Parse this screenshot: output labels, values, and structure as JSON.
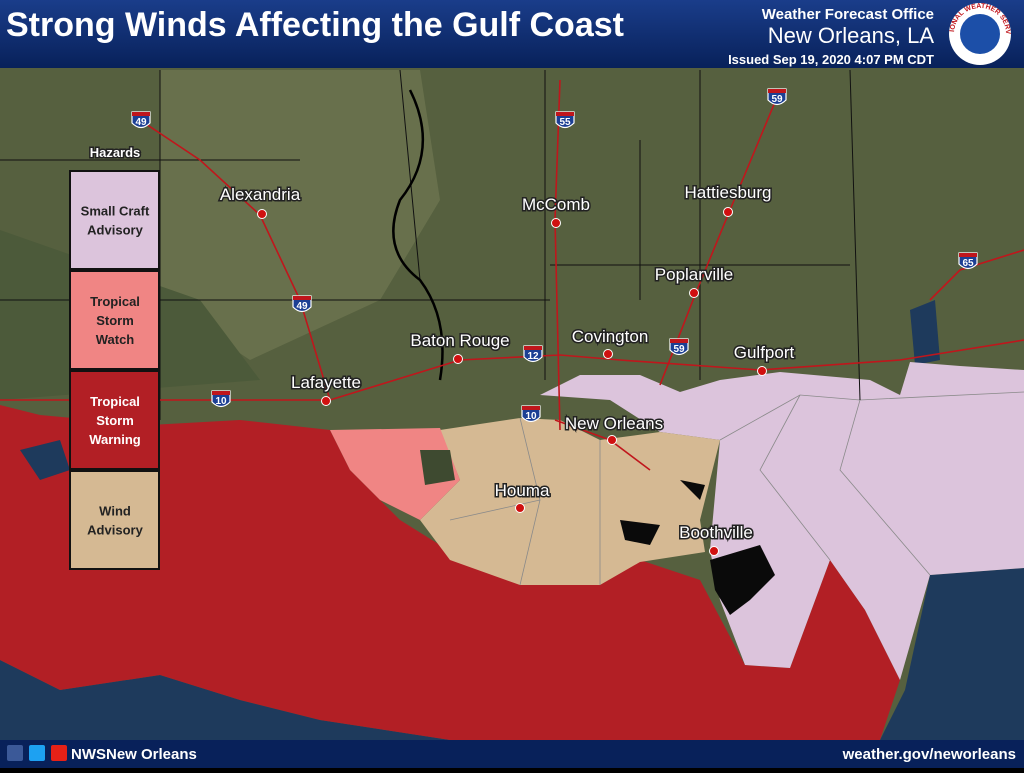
{
  "header": {
    "title": "Strong Winds Affecting the Gulf Coast",
    "office": "Weather Forecast Office",
    "location": "New Orleans, LA",
    "issued": "Issued Sep 19, 2020 4:07 PM CDT",
    "logo_text": "NATIONAL WEATHER SERVICE"
  },
  "legend": {
    "title": "Hazards",
    "items": [
      {
        "label": [
          "Small Craft",
          "Advisory"
        ],
        "color": "#dcc4dc"
      },
      {
        "label": [
          "Tropical",
          "Storm",
          "Watch"
        ],
        "color": "#f08584"
      },
      {
        "label": [
          "Tropical",
          "Storm",
          "Warning"
        ],
        "color": "#b21f25"
      },
      {
        "label": [
          "Wind",
          "Advisory"
        ],
        "color": "#d5b993"
      }
    ]
  },
  "cities": [
    "Alexandria",
    "McComb",
    "Hattiesburg",
    "Poplarville",
    "Baton Rouge",
    "Covington",
    "Gulfport",
    "Lafayette",
    "New Orleans",
    "Houma",
    "Boothville"
  ],
  "interstates": [
    "49",
    "55",
    "59",
    "49",
    "12",
    "10",
    "10",
    "59",
    "65"
  ],
  "footer": {
    "social": "NWSNew Orleans",
    "url": "weather.gov/neworleans"
  }
}
